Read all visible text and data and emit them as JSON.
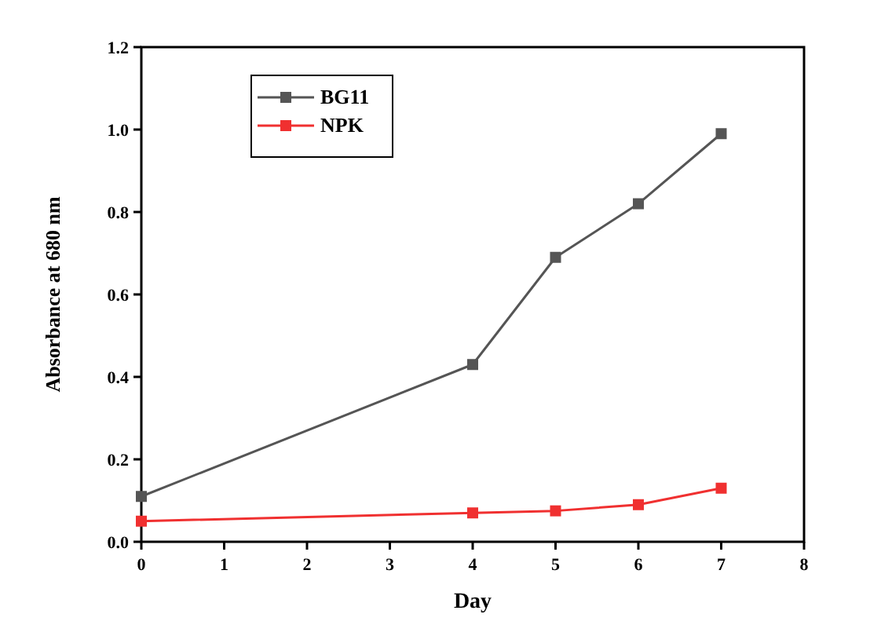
{
  "chart_data": {
    "type": "line",
    "xlabel": "Day",
    "ylabel": "Absorbance at 680 nm",
    "xlim": [
      0,
      8
    ],
    "xticks": [
      0,
      1,
      2,
      3,
      4,
      5,
      6,
      7,
      8
    ],
    "ylim": [
      0,
      1.2
    ],
    "yticks": [
      {
        "value": 0,
        "label": "0.0"
      },
      0.2,
      0.4,
      0.6,
      0.8,
      {
        "value": 1,
        "label": "1.0"
      },
      1.2
    ],
    "grid": false,
    "legend": "top left",
    "marker": "square",
    "line_style": "solid",
    "series": [
      {
        "name": "BG11",
        "color": "#555555",
        "x": [
          0,
          4,
          5,
          6,
          7
        ],
        "values": [
          0.11,
          0.43,
          0.69,
          0.82,
          0.99
        ]
      },
      {
        "name": "NPK",
        "color": "#f03030",
        "x": [
          0,
          4,
          5,
          6,
          7
        ],
        "values": [
          0.05,
          0.07,
          0.075,
          0.09,
          0.13
        ]
      }
    ]
  }
}
